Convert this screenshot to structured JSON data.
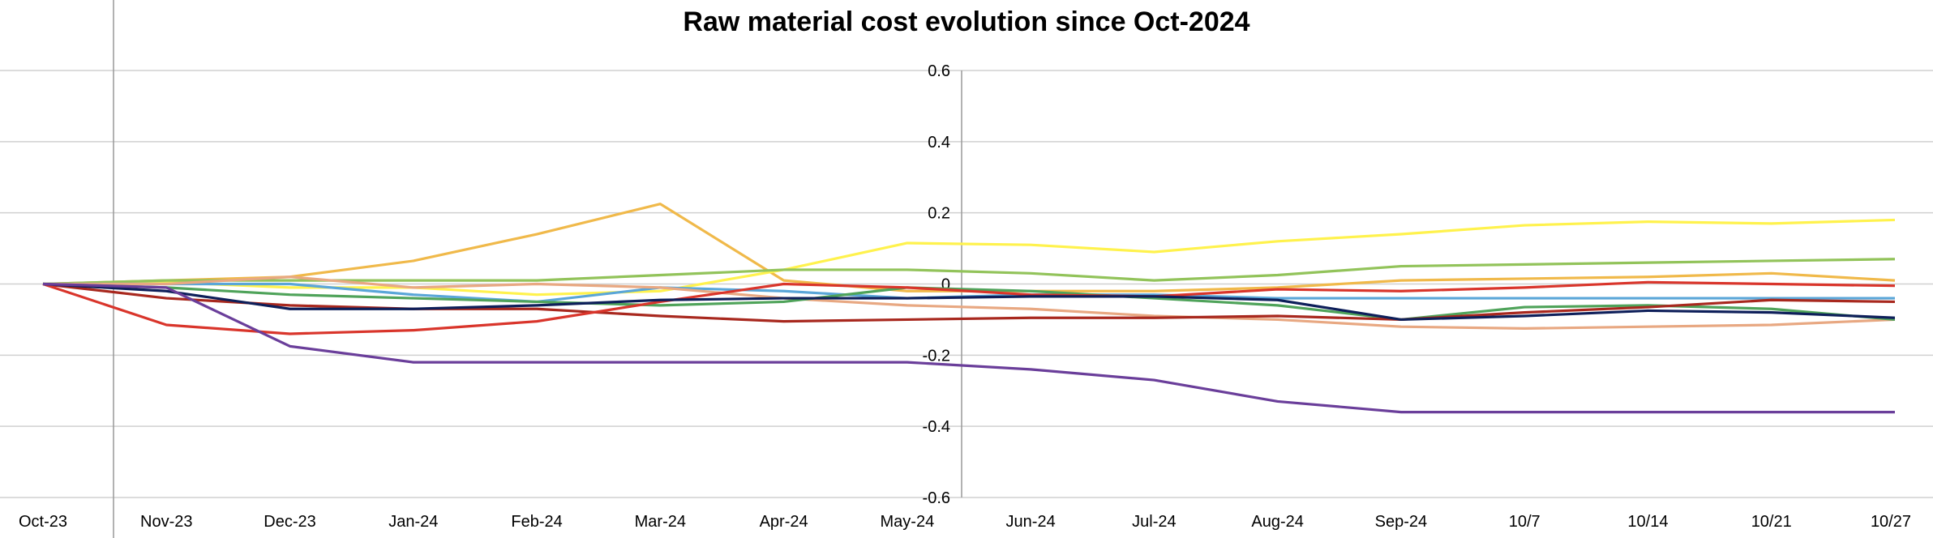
{
  "chart_data": {
    "type": "line",
    "title": "Raw material cost evolution since Oct-2024",
    "xlabel": "",
    "ylabel": "",
    "ylim": [
      -0.6,
      0.6
    ],
    "yticks": [
      "0.6",
      "0.4",
      "0.2",
      "0",
      "-0.2",
      "-0.4",
      "-0.6"
    ],
    "grid": true,
    "legend": "none",
    "categories": [
      "Oct-23",
      "Nov-23",
      "Dec-23",
      "Jan-24",
      "Feb-24",
      "Mar-24",
      "Apr-24",
      "May-24",
      "Jun-24",
      "Jul-24",
      "Aug-24",
      "Sep-24",
      "10/7",
      "10/14",
      "10/21",
      "10/27"
    ],
    "series": [
      {
        "color": "#F0B94A",
        "values": [
          0,
          0.01,
          0.02,
          0.065,
          0.14,
          0.225,
          0.01,
          -0.02,
          -0.02,
          -0.02,
          -0.01,
          0.01,
          0.015,
          0.02,
          0.03,
          0.01
        ]
      },
      {
        "color": "#FFF24D",
        "values": [
          0,
          0.005,
          -0.01,
          -0.01,
          -0.03,
          -0.02,
          0.04,
          0.115,
          0.11,
          0.09,
          0.12,
          0.14,
          0.165,
          0.175,
          0.17,
          0.18
        ]
      },
      {
        "color": "#92C35A",
        "values": [
          0,
          0.01,
          0.01,
          0.01,
          0.01,
          0.025,
          0.04,
          0.04,
          0.03,
          0.01,
          0.025,
          0.05,
          0.055,
          0.06,
          0.065,
          0.07
        ]
      },
      {
        "color": "#5AA6D8",
        "values": [
          0,
          0,
          0,
          -0.03,
          -0.05,
          -0.01,
          -0.02,
          -0.04,
          -0.03,
          -0.03,
          -0.04,
          -0.04,
          -0.04,
          -0.04,
          -0.04,
          -0.04
        ]
      },
      {
        "color": "#E8A882",
        "values": [
          0,
          0,
          0.02,
          -0.01,
          0,
          -0.01,
          -0.04,
          -0.06,
          -0.07,
          -0.09,
          -0.1,
          -0.12,
          -0.125,
          -0.12,
          -0.115,
          -0.1
        ]
      },
      {
        "color": "#4FA35A",
        "values": [
          0,
          -0.01,
          -0.03,
          -0.04,
          -0.05,
          -0.06,
          -0.05,
          -0.01,
          -0.02,
          -0.04,
          -0.06,
          -0.1,
          -0.065,
          -0.06,
          -0.07,
          -0.1
        ]
      },
      {
        "color": "#A8281E",
        "values": [
          0,
          -0.04,
          -0.06,
          -0.07,
          -0.07,
          -0.09,
          -0.105,
          -0.1,
          -0.095,
          -0.095,
          -0.09,
          -0.1,
          -0.08,
          -0.065,
          -0.045,
          -0.05
        ]
      },
      {
        "color": "#D9352B",
        "values": [
          0,
          -0.115,
          -0.14,
          -0.13,
          -0.105,
          -0.05,
          0,
          -0.01,
          -0.03,
          -0.035,
          -0.015,
          -0.02,
          -0.01,
          0.005,
          0,
          -0.005
        ]
      },
      {
        "color": "#0E1F5A",
        "values": [
          0,
          -0.02,
          -0.07,
          -0.07,
          -0.06,
          -0.045,
          -0.04,
          -0.04,
          -0.035,
          -0.035,
          -0.045,
          -0.1,
          -0.09,
          -0.075,
          -0.08,
          -0.095
        ]
      },
      {
        "color": "#6A3E9A",
        "values": [
          0,
          -0.01,
          -0.175,
          -0.22,
          -0.22,
          -0.22,
          -0.22,
          -0.22,
          -0.24,
          -0.27,
          -0.33,
          -0.36,
          -0.36,
          -0.36,
          -0.36,
          -0.36
        ]
      }
    ]
  }
}
